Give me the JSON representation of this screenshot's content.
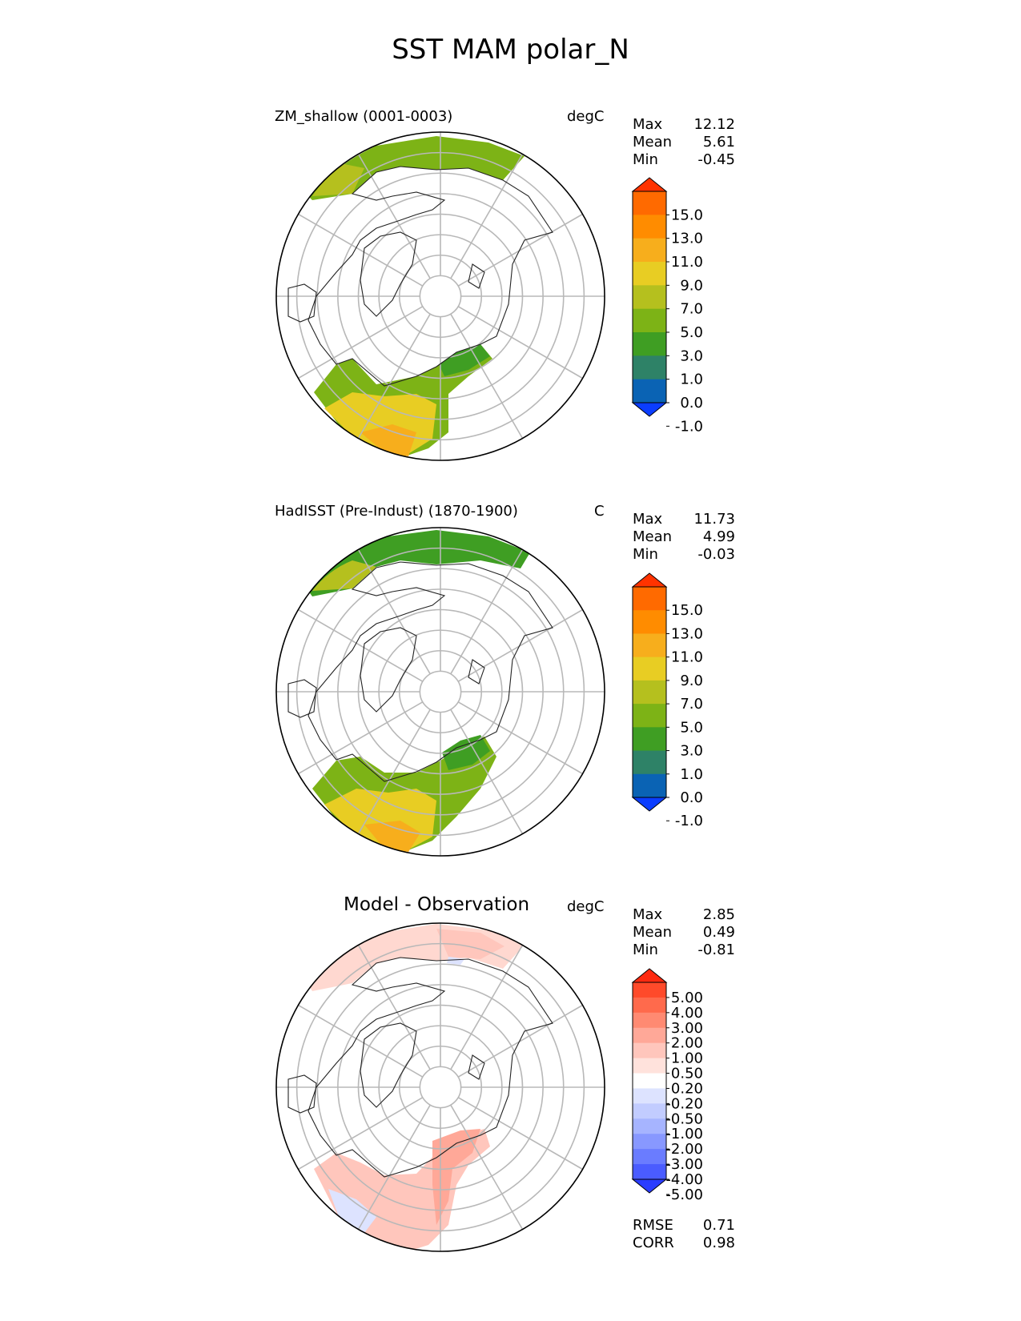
{
  "figure": {
    "title": "SST MAM polar_N"
  },
  "panels": [
    {
      "title": "ZM_shallow (0001-0003)",
      "units": "degC",
      "stats": [
        {
          "label": "Max",
          "value": "12.12"
        },
        {
          "label": "Mean",
          "value": "5.61"
        },
        {
          "label": "Min",
          "value": "-0.45"
        }
      ],
      "colorbar": {
        "ticks": [
          "15.0",
          "13.0",
          "11.0",
          "9.0",
          "7.0",
          "5.0",
          "3.0",
          "1.0",
          "0.0",
          "-1.0"
        ],
        "colors_top_to_bottom": [
          "#ff3300",
          "#ff6a00",
          "#ff8c00",
          "#f7ae1c",
          "#e8cd23",
          "#b5c01e",
          "#7db316",
          "#3f9e23",
          "#2e8267",
          "#0a63b4",
          "#0b3dff"
        ]
      }
    },
    {
      "title": "HadISST (Pre-Indust) (1870-1900)",
      "units": "C",
      "stats": [
        {
          "label": "Max",
          "value": "11.73"
        },
        {
          "label": "Mean",
          "value": "4.99"
        },
        {
          "label": "Min",
          "value": "-0.03"
        }
      ],
      "colorbar": {
        "ticks": [
          "15.0",
          "13.0",
          "11.0",
          "9.0",
          "7.0",
          "5.0",
          "3.0",
          "1.0",
          "0.0",
          "-1.0"
        ],
        "colors_top_to_bottom": [
          "#ff3300",
          "#ff6a00",
          "#ff8c00",
          "#f7ae1c",
          "#e8cd23",
          "#b5c01e",
          "#7db316",
          "#3f9e23",
          "#2e8267",
          "#0a63b4",
          "#0b3dff"
        ]
      }
    },
    {
      "title": "Model - Observation",
      "units": "degC",
      "stats": [
        {
          "label": "Max",
          "value": "2.85"
        },
        {
          "label": "Mean",
          "value": "0.49"
        },
        {
          "label": "Min",
          "value": "-0.81"
        }
      ],
      "extra_stats": [
        {
          "label": "RMSE",
          "value": "0.71"
        },
        {
          "label": "CORR",
          "value": "0.98"
        }
      ],
      "colorbar": {
        "ticks": [
          "5.00",
          "4.00",
          "3.00",
          "2.00",
          "1.00",
          "0.50",
          "0.20",
          "-0.20",
          "-0.50",
          "-1.00",
          "-2.00",
          "-3.00",
          "-4.00",
          "-5.00"
        ],
        "colors_top_to_bottom": [
          "#ff2a10",
          "#ff4a2a",
          "#ff6a4c",
          "#ff8a72",
          "#ffa898",
          "#ffc6bc",
          "#ffe2dc",
          "#ffffff",
          "#dde3ff",
          "#c2ccff",
          "#a6b4ff",
          "#8898ff",
          "#6a7cff",
          "#4a5cff",
          "#2a3cff"
        ]
      }
    }
  ]
}
